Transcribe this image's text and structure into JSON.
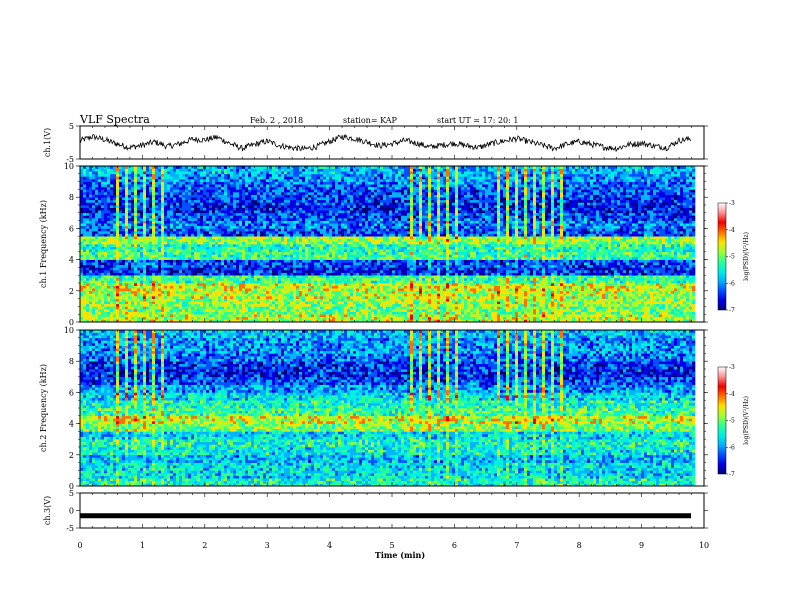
{
  "header": {
    "title": "VLF Spectra",
    "date": "Feb. 2 , 2018",
    "station": "station= KAP",
    "start": "start  UT  =   17: 20: 1"
  },
  "chart_data": [
    {
      "type": "line",
      "name": "ch1-waveform",
      "ylabel": "ch.1(V)",
      "ylim": [
        -5,
        5
      ],
      "ytick_labels": [
        "5",
        "-5"
      ],
      "x": [
        0,
        0.2,
        0.4,
        0.6,
        0.8,
        1.0,
        1.2,
        1.4,
        1.6,
        1.8,
        2.0,
        2.2,
        2.4,
        2.6,
        2.8,
        3.0,
        3.2,
        3.4,
        3.6,
        3.8,
        4.0,
        4.2,
        4.4,
        4.6,
        4.8,
        5.0,
        5.2,
        5.4,
        5.6,
        5.8,
        6.0,
        6.2,
        6.4,
        6.6,
        6.8,
        7.0,
        7.2,
        7.4,
        7.6,
        7.8,
        8.0,
        8.2,
        8.4,
        8.6,
        8.8,
        9.0,
        9.2,
        9.4,
        9.6,
        9.8
      ],
      "values": [
        0.5,
        1.8,
        0.8,
        -0.5,
        -1.5,
        -0.8,
        0.2,
        -1.2,
        -0.4,
        1.0,
        0.8,
        1.6,
        -0.3,
        -1.8,
        -0.6,
        0.4,
        -0.9,
        -1.6,
        -2.0,
        -1.2,
        0.3,
        1.8,
        1.2,
        0.2,
        -1.0,
        -0.4,
        0.6,
        -0.2,
        -1.4,
        -0.8,
        -0.2,
        -1.0,
        -1.5,
        -0.3,
        0.5,
        1.2,
        0.2,
        -0.8,
        -1.8,
        -0.5,
        0.3,
        -0.6,
        -1.4,
        -1.8,
        -0.6,
        -0.2,
        -1.0,
        -1.6,
        0.6,
        1.2
      ]
    },
    {
      "type": "heatmap",
      "name": "ch1-spectrogram",
      "ylabel": "ch.1\nFrequency  (kHz)",
      "xlim": [
        0,
        10
      ],
      "ylim": [
        0,
        10
      ],
      "ytick_labels": [
        "0",
        "2",
        "4",
        "6",
        "8",
        "10"
      ],
      "freq_khz": [
        0.25,
        0.75,
        1.25,
        1.75,
        2.25,
        2.75,
        3.25,
        3.75,
        4.25,
        4.75,
        5.25,
        5.75,
        6.25,
        6.75,
        7.25,
        7.75,
        8.25,
        8.75,
        9.25,
        9.75
      ],
      "mean_log_psd": [
        -4.8,
        -5.0,
        -4.9,
        -4.8,
        -4.7,
        -5.2,
        -6.4,
        -6.2,
        -5.2,
        -5.3,
        -4.9,
        -6.2,
        -6.0,
        -6.2,
        -6.4,
        -6.3,
        -6.2,
        -6.1,
        -5.9,
        -5.8
      ],
      "colorbar": {
        "label": "log(PSD)(V²/Hz)",
        "range": [
          -7,
          -3
        ],
        "tick_labels": [
          "-3",
          "-4",
          "-5",
          "-6",
          "-7"
        ]
      }
    },
    {
      "type": "heatmap",
      "name": "ch2-spectrogram",
      "ylabel": "ch.2\nFrequency  (kHz)",
      "xlim": [
        0,
        10
      ],
      "ylim": [
        0,
        10
      ],
      "ytick_labels": [
        "0",
        "2",
        "4",
        "6",
        "8",
        "10"
      ],
      "freq_khz": [
        0.25,
        0.75,
        1.25,
        1.75,
        2.25,
        2.75,
        3.25,
        3.75,
        4.25,
        4.75,
        5.25,
        5.75,
        6.25,
        6.75,
        7.25,
        7.75,
        8.25,
        8.75,
        9.25,
        9.75
      ],
      "mean_log_psd": [
        -5.4,
        -5.6,
        -5.6,
        -5.8,
        -5.5,
        -5.4,
        -5.6,
        -5.0,
        -4.7,
        -5.2,
        -5.4,
        -5.6,
        -5.9,
        -6.2,
        -6.4,
        -6.3,
        -6.1,
        -5.9,
        -5.9,
        -5.8
      ],
      "colorbar": {
        "label": "log(PSD)(V²/Hz)",
        "range": [
          -7,
          -3
        ],
        "tick_labels": [
          "-3",
          "-4",
          "-5",
          "-6",
          "-7"
        ]
      }
    },
    {
      "type": "line",
      "name": "ch3-waveform",
      "ylabel": "ch.3(V)",
      "ylim": [
        -5,
        5
      ],
      "ytick_labels": [
        "5",
        "0",
        "-5"
      ],
      "x": [
        0,
        9.8
      ],
      "values": [
        -1.5,
        -1.5
      ]
    }
  ],
  "x_axis": {
    "label": "Time  (min)",
    "xlim": [
      0,
      10
    ],
    "tick_labels": [
      "0",
      "1",
      "2",
      "3",
      "4",
      "5",
      "6",
      "7",
      "8",
      "9",
      "10"
    ]
  },
  "colormap": [
    "#00007a",
    "#0000e6",
    "#0050ff",
    "#00b4ff",
    "#00f0e0",
    "#30ff90",
    "#a0ff30",
    "#ffe000",
    "#ff7000",
    "#ee0000",
    "#ff9090",
    "#ffffff"
  ]
}
